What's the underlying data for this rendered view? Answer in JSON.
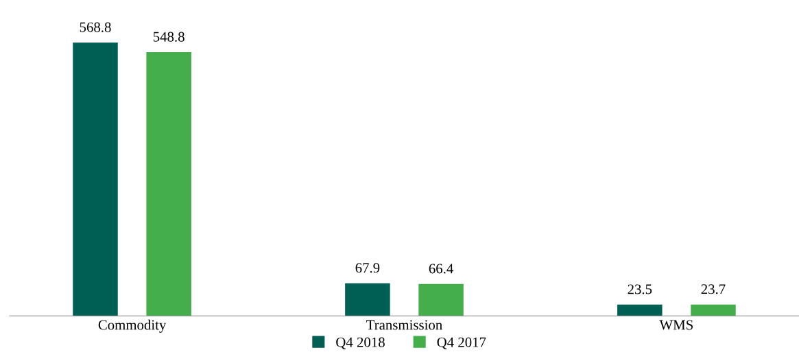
{
  "chart_data": {
    "type": "bar",
    "categories": [
      "Commodity",
      "Transmission",
      "WMS"
    ],
    "series": [
      {
        "name": "Q4 2018",
        "color": "#005f54",
        "values": [
          568.8,
          67.9,
          23.5
        ]
      },
      {
        "name": "Q4 2017",
        "color": "#43ae4a",
        "values": [
          548.8,
          66.4,
          23.7
        ]
      }
    ],
    "data_labels": true,
    "legend": "bottom",
    "grid": false,
    "tick_labels": "x"
  }
}
